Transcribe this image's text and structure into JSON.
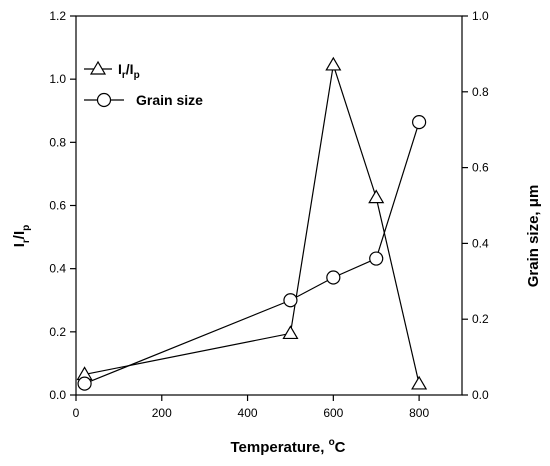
{
  "chart_data": {
    "type": "line",
    "xlabel": "Temperature, °C",
    "xlabel_main": "Temperature, ",
    "xlabel_sup": "o",
    "xlabel_unit": "C",
    "ylabel_left": "Ir/Ip",
    "ylabel_left_main1": "I",
    "ylabel_left_sub1": "r",
    "ylabel_left_main2": "/I",
    "ylabel_left_sub2": "p",
    "ylabel_right": "Grain size, μm",
    "xlim": [
      0,
      900
    ],
    "ylim_left": [
      0,
      1.2
    ],
    "ylim_right": [
      0,
      1.0
    ],
    "xticks": [
      "0",
      "200",
      "400",
      "600",
      "800"
    ],
    "yticks_left": [
      "0.0",
      "0.2",
      "0.4",
      "0.6",
      "0.8",
      "1.0",
      "1.2"
    ],
    "yticks_right": [
      "0.0",
      "0.2",
      "0.4",
      "0.6",
      "0.8",
      "1.0"
    ],
    "legend_position": "top-left",
    "series": [
      {
        "name": "Ir/Ip",
        "legend_main": "I",
        "legend_sub1": "r",
        "legend_mid": "/I",
        "legend_sub2": "p",
        "marker": "triangle",
        "axis": "left",
        "x": [
          20,
          500,
          600,
          700,
          800
        ],
        "y": [
          0.065,
          0.195,
          1.045,
          0.625,
          0.035
        ]
      },
      {
        "name": "Grain size",
        "legend_label": "Grain size",
        "marker": "circle",
        "axis": "right",
        "x": [
          20,
          500,
          600,
          700,
          800
        ],
        "y": [
          0.03,
          0.25,
          0.31,
          0.36,
          0.72
        ]
      }
    ]
  }
}
